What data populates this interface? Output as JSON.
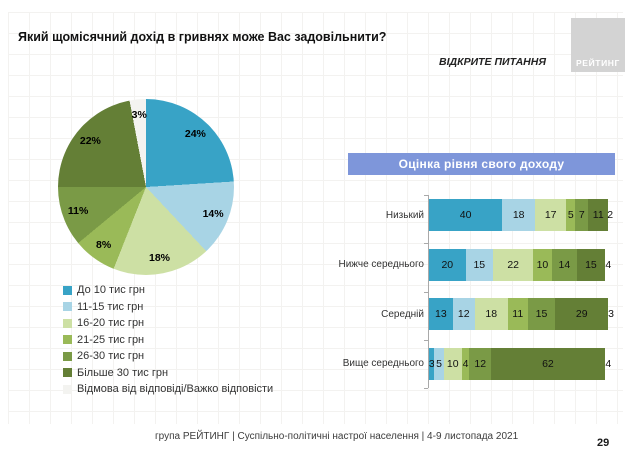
{
  "slide": {
    "title": "Який щомісячний дохід в гривнях може Вас задовільнити?",
    "subtitle": "ВІДКРИТЕ ПИТАННЯ",
    "logo_text": "РЕЙТИНГ",
    "footer": "група РЕЙТИНГ | Суспільно-політичні настрої населення  | 4-9 листопада 2021",
    "page_number": "29"
  },
  "colors": {
    "accent_banner": "#7e96da",
    "logo_bg": "#d3d3d3",
    "palette": [
      "#38a3c6",
      "#a8d4e5",
      "#cde0a4",
      "#9aba58",
      "#7a9a46",
      "#647f36",
      "#f3f3f0"
    ]
  },
  "chart_data": [
    {
      "type": "pie",
      "title": "",
      "labels": [
        "До 10 тис грн",
        "11-15 тис грн",
        "16-20 тис грн",
        "21-25 тис грн",
        "26-30 тис грн",
        "Більше 30 тис грн",
        "Відмова від відповіді/Важко відповісти"
      ],
      "values": [
        24,
        14,
        18,
        8,
        11,
        22,
        3
      ],
      "start_angle_deg": 0,
      "direction": "clockwise",
      "legend_position": "below-left"
    },
    {
      "type": "bar",
      "orientation": "horizontal-stacked",
      "title": "Оцінка рівня свого доходу",
      "categories": [
        "Низький",
        "Нижче середнього",
        "Середній",
        "Вище середнього"
      ],
      "series": [
        {
          "name": "До 10 тис грн",
          "values": [
            40,
            20,
            13,
            3
          ]
        },
        {
          "name": "11-15 тис грн",
          "values": [
            18,
            15,
            12,
            5
          ]
        },
        {
          "name": "16-20 тис грн",
          "values": [
            17,
            22,
            18,
            10
          ]
        },
        {
          "name": "21-25 тис грн",
          "values": [
            5,
            10,
            11,
            4
          ]
        },
        {
          "name": "26-30 тис грн",
          "values": [
            7,
            14,
            15,
            12
          ]
        },
        {
          "name": "Більше 30 тис грн",
          "values": [
            11,
            15,
            29,
            62
          ]
        },
        {
          "name": "Відмова від відповіді/Важко відповісти",
          "values": [
            2,
            4,
            3,
            4
          ]
        }
      ],
      "xlim": [
        0,
        100
      ],
      "grid": false,
      "legend_position": "shared-with-pie"
    }
  ]
}
